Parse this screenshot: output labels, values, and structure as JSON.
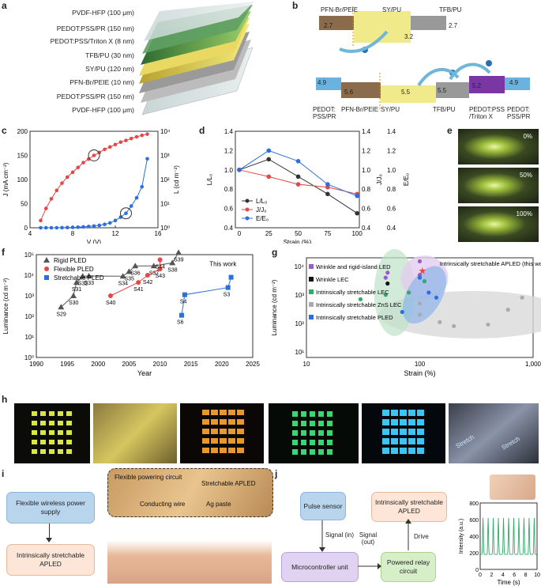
{
  "panel_labels": {
    "a": "a",
    "b": "b",
    "c": "c",
    "d": "d",
    "e": "e",
    "f": "f",
    "g": "g",
    "h": "h",
    "i": "i",
    "j": "j"
  },
  "panel_a": {
    "layers": [
      "PVDF-HFP (100 μm)",
      "PEDOT:PSS/PR (150 nm)",
      "PEDOT:PSS/Triton X (8 nm)",
      "TFB/PU (30 nm)",
      "SY/PU (120 nm)",
      "PFN-Br/PEIE (10 nm)",
      "PEDOT:PSS/PR (150 nm)",
      "PVDF-HFP (100 μm)"
    ]
  },
  "panel_b": {
    "top": {
      "left_label": "PFN-Br/PEIE",
      "mid_label": "SY/PU",
      "right_label": "TFB/PU",
      "values": [
        "2.7",
        "3.2",
        "2.7"
      ]
    },
    "bottom": {
      "labels": [
        "PEDOT:\nPSS/PR",
        "PFN-Br/PEIE",
        "SY/PU",
        "TFB/PU",
        "PEDOT:PSS\n/Triton X",
        "PEDOT:\nPSS/PR"
      ],
      "values": [
        "4.9",
        "5.6",
        "5.5",
        "5.5",
        "5.2",
        "4.9"
      ]
    }
  },
  "panel_e": {
    "labels": [
      "0%",
      "50%",
      "100%"
    ]
  },
  "panel_h": {
    "stretch1": "Stretch",
    "stretch2": "Stretch"
  },
  "panel_i": {
    "box1": "Flexible wireless power supply",
    "box2": "Intrinsically stretchable APLED",
    "annotations": [
      "Flexible powering circuit",
      "Stretchable APLED",
      "Conducting wire",
      "Ag paste"
    ]
  },
  "panel_j": {
    "pulse": "Pulse sensor",
    "mcu": "Microcontroller unit",
    "relay": "Powered relay circuit",
    "apled": "Intrinsically stretchable APLED",
    "signal_in": "Signal (in)",
    "signal_out": "Signal (out)",
    "drive": "Drive"
  },
  "chart_data": [
    {
      "id": "c",
      "type": "line",
      "xlabel": "V (V)",
      "ylabel": "J (mA cm⁻²)",
      "y2label": "L (cd m⁻²)",
      "xlim": [
        4,
        16
      ],
      "ylim": [
        0,
        200
      ],
      "y2lim_log": [
        0,
        4
      ],
      "xticks": [
        4,
        8,
        12,
        16
      ],
      "yticks": [
        0,
        50,
        100,
        150,
        200
      ],
      "y2ticks": [
        "10⁰",
        "10¹",
        "10²",
        "10³",
        "10⁴"
      ],
      "series": [
        {
          "name": "J",
          "axis": "left",
          "color": "#2a6fdb",
          "x": [
            5,
            5.5,
            6,
            6.5,
            7,
            7.5,
            8,
            8.5,
            9,
            9.5,
            10,
            10.5,
            11,
            11.5,
            12,
            12.5,
            13,
            13.5,
            14,
            14.5,
            15
          ],
          "y": [
            0,
            0,
            0,
            0,
            0.2,
            0.5,
            0.8,
            1.2,
            1.8,
            2.6,
            3.6,
            5,
            7,
            10,
            15,
            22,
            30,
            45,
            62,
            85,
            143
          ]
        },
        {
          "name": "L",
          "axis": "right",
          "color": "#e64646",
          "x": [
            5,
            5.5,
            6,
            6.5,
            7,
            7.5,
            8,
            8.5,
            9,
            9.5,
            10,
            10.5,
            11,
            11.5,
            12,
            12.5,
            13,
            13.5,
            14,
            14.5,
            15
          ],
          "y_log10": [
            0.3,
            0.8,
            1.2,
            1.55,
            1.85,
            2.1,
            2.3,
            2.5,
            2.7,
            2.85,
            3.0,
            3.12,
            3.25,
            3.35,
            3.45,
            3.55,
            3.62,
            3.7,
            3.77,
            3.83,
            3.88
          ]
        }
      ]
    },
    {
      "id": "d",
      "type": "line",
      "xlabel": "Strain (%)",
      "ylabel": "L/L₀",
      "y2label": "J/J₀",
      "y3label": "E/E₀",
      "xticks": [
        0,
        25,
        50,
        75,
        100
      ],
      "ylim": [
        0.4,
        1.4
      ],
      "yticks": [
        "0.4",
        "0.6",
        "0.8",
        "1.0",
        "1.2",
        "1.4"
      ],
      "legend": [
        "L/L₀",
        "J/J₀",
        "E/E₀"
      ],
      "series": [
        {
          "name": "L/L₀",
          "color": "#333333",
          "x": [
            0,
            25,
            50,
            75,
            100
          ],
          "y": [
            1.0,
            1.11,
            0.93,
            0.75,
            0.55
          ]
        },
        {
          "name": "J/J₀",
          "color": "#e64646",
          "x": [
            0,
            25,
            50,
            75,
            100
          ],
          "y": [
            1.0,
            0.93,
            0.85,
            0.82,
            0.75
          ]
        },
        {
          "name": "E/E₀",
          "color": "#2a6fdb",
          "x": [
            0,
            25,
            50,
            75,
            100
          ],
          "y": [
            1.0,
            1.2,
            1.09,
            0.85,
            0.73
          ]
        }
      ]
    },
    {
      "id": "f",
      "type": "scatter",
      "xlabel": "Year",
      "ylabel": "Luminance (cd m⁻²)",
      "xlim": [
        1990,
        2025
      ],
      "xticks": [
        1990,
        1995,
        2000,
        2005,
        2010,
        2015,
        2020,
        2025
      ],
      "ylim_log": [
        0,
        5
      ],
      "yticks": [
        "10⁰",
        "10¹",
        "10²",
        "10³",
        "10⁴",
        "10⁵"
      ],
      "legend": [
        "Rigid PLED",
        "Flexible PLED",
        "Stretchable PLED"
      ],
      "this_work_label": "This work",
      "series": [
        {
          "name": "Rigid PLED",
          "color": "#555555",
          "marker": "triangle",
          "points": [
            {
              "x": 1994,
              "y": 2.45,
              "label": "S29"
            },
            {
              "x": 1996,
              "y": 3.0,
              "label": "S30"
            },
            {
              "x": 1996.5,
              "y": 3.65,
              "label": "S31"
            },
            {
              "x": 1997.5,
              "y": 3.95,
              "label": "S32"
            },
            {
              "x": 1998.5,
              "y": 3.96,
              "label": "S33"
            },
            {
              "x": 2004,
              "y": 3.95,
              "label": "S34"
            },
            {
              "x": 2005,
              "y": 4.18,
              "label": "S35"
            },
            {
              "x": 2006,
              "y": 4.45,
              "label": "S36"
            },
            {
              "x": 2009,
              "y": 4.45,
              "label": "S37"
            },
            {
              "x": 2012,
              "y": 4.6,
              "label": "S38"
            },
            {
              "x": 2013,
              "y": 5.1,
              "label": "S39"
            }
          ]
        },
        {
          "name": "Flexible PLED",
          "color": "#e64646",
          "marker": "circle",
          "points": [
            {
              "x": 2002,
              "y": 3.0,
              "label": "S40"
            },
            {
              "x": 2006.5,
              "y": 3.65,
              "label": "S41"
            },
            {
              "x": 2008,
              "y": 4.0,
              "label": "S42"
            },
            {
              "x": 2010,
              "y": 4.3,
              "label": "S43"
            },
            {
              "x": 2010,
              "y": 4.75,
              "label": "S44"
            }
          ]
        },
        {
          "name": "Stretchable PLED",
          "color": "#2a6fdb",
          "marker": "square",
          "points": [
            {
              "x": 2013.5,
              "y": 2.05,
              "label": "S6"
            },
            {
              "x": 2014,
              "y": 3.05,
              "label": "S4"
            },
            {
              "x": 2021,
              "y": 3.4,
              "label": "S3"
            },
            {
              "x": 2021.5,
              "y": 3.9,
              "label": "This work"
            }
          ]
        }
      ]
    },
    {
      "id": "g",
      "type": "scatter",
      "xlabel": "Strain (%)",
      "ylabel": "Luminance (cd m⁻²)",
      "xticks": [
        "10",
        "100",
        "1,000"
      ],
      "yticks": [
        "10¹",
        "10²",
        "10³",
        "10⁴"
      ],
      "annotation": "Intrinsically stretchable APLED (this work)",
      "legend": [
        "Wrinkle and rigid-island LED",
        "Wrinkle LEC",
        "Intrinsically stretchable LEC",
        "Intrinsically stretchable ZnS LEC",
        "Intrinsically stretchable PLED"
      ],
      "series": [
        {
          "name": "Wrinkle and rigid-island LED",
          "color": "#9b59d0",
          "points": [
            [
              50,
              4000
            ],
            [
              52,
              6000
            ],
            [
              100,
              15000
            ],
            [
              100,
              5000
            ]
          ]
        },
        {
          "name": "Wrinkle LEC",
          "color": "#111111",
          "points": [
            [
              52,
              2500
            ]
          ]
        },
        {
          "name": "Intrinsically stretchable LEC",
          "color": "#35a96a",
          "points": [
            [
              30,
              700
            ],
            [
              50,
              1000
            ],
            [
              110,
              3000
            ],
            [
              80,
              1200
            ]
          ]
        },
        {
          "name": "Intrinsically stretchable ZnS LEC",
          "color": "#aaaaaa",
          "points": [
            [
              100,
              200
            ],
            [
              150,
              110
            ],
            [
              200,
              80
            ],
            [
              400,
              90
            ],
            [
              600,
              300
            ],
            [
              800,
              800
            ],
            [
              100,
              500
            ]
          ]
        },
        {
          "name": "Intrinsically stretchable PLED",
          "color": "#2a6fdb",
          "points": [
            [
              70,
              250
            ],
            [
              120,
              1200
            ],
            [
              100,
              4000
            ],
            [
              140,
              800
            ]
          ]
        },
        {
          "name": "This work",
          "color": "#e64646",
          "points": [
            [
              105,
              7000
            ]
          ]
        }
      ]
    },
    {
      "id": "j",
      "type": "line",
      "xlabel": "Time (s)",
      "ylabel": "Intensity (a.u.)",
      "xticks": [
        0,
        2,
        4,
        6,
        8,
        10
      ],
      "yticks": [
        0,
        200,
        400,
        600,
        800
      ],
      "xlim": [
        0,
        10
      ],
      "ylim": [
        0,
        800
      ],
      "series": [
        {
          "name": "Intensity",
          "color": "#35a96a",
          "beats_at": [
            0.5,
            1.4,
            2.3,
            3.2,
            4.1,
            5.0,
            5.9,
            6.8,
            7.7,
            8.6,
            9.5
          ],
          "baseline": 180,
          "peak": 620
        }
      ]
    }
  ]
}
